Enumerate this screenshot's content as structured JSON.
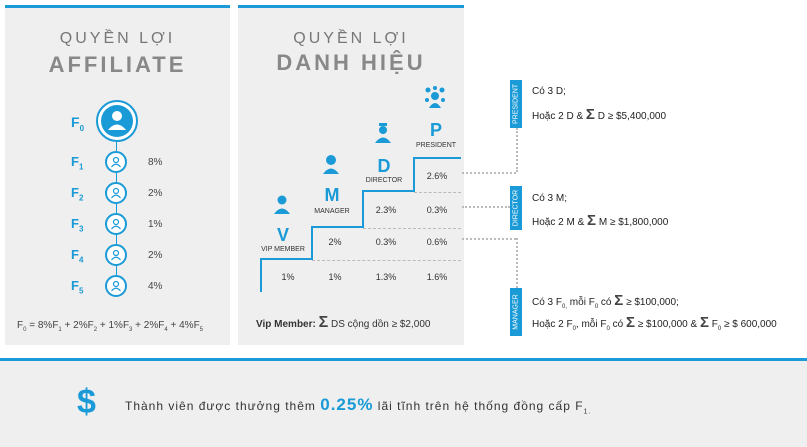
{
  "affiliate": {
    "title_line1": "QUYỀN LỢI",
    "title_line2": "AFFILIATE",
    "root_label": "F",
    "root_sub": "0",
    "levels": [
      {
        "label": "F",
        "sub": "1",
        "percent": "8%"
      },
      {
        "label": "F",
        "sub": "2",
        "percent": "2%"
      },
      {
        "label": "F",
        "sub": "3",
        "percent": "1%"
      },
      {
        "label": "F",
        "sub": "4",
        "percent": "2%"
      },
      {
        "label": "F",
        "sub": "5",
        "percent": "4%"
      }
    ],
    "formula": {
      "lhs": "F",
      "lhs_sub": "0",
      "eq": " = ",
      "terms": [
        {
          "coef": "8%F",
          "sub": "1",
          "sep": " + "
        },
        {
          "coef": "2%F",
          "sub": "2",
          "sep": " + "
        },
        {
          "coef": "1%F",
          "sub": "3",
          "sep": " + "
        },
        {
          "coef": "2%F",
          "sub": "4",
          "sep": " + "
        },
        {
          "coef": "4%F",
          "sub": "5",
          "sep": ""
        }
      ]
    }
  },
  "titles": {
    "title_line1": "QUYỀN LỢI",
    "title_line2": "DANH HIỆU",
    "levels": {
      "vip": {
        "letter": "V",
        "name": "VIP MEMBER"
      },
      "manager": {
        "letter": "M",
        "name": "MANAGER"
      },
      "director": {
        "letter": "D",
        "name": "DIRECTOR"
      },
      "president": {
        "letter": "P",
        "name": "PRESIDENT"
      }
    },
    "cells": {
      "row_p": [
        "2.6%"
      ],
      "row_d": [
        "2.3%",
        "0.3%"
      ],
      "row_m": [
        "2%",
        "0.3%",
        "0.6%"
      ],
      "row_v": [
        "1%",
        "1%",
        "1.3%",
        "1.6%"
      ]
    },
    "vip_condition": {
      "label": "Vip Member:",
      "sigma": "Σ",
      "text": " DS cộng dồn ≥  $2,000"
    }
  },
  "requirements": {
    "president": {
      "tag": "PRESIDENT",
      "line1": "Có 3 D;",
      "line2_a": "Hoặc 2 D & ",
      "line2_sigma": "Σ",
      "line2_b": " D ≥ $5,400,000"
    },
    "director": {
      "tag": "DIRECTOR",
      "line1": "Có 3 M;",
      "line2_a": "Hoặc 2 M & ",
      "line2_sigma": "Σ",
      "line2_b": " M ≥ $1,800,000"
    },
    "manager": {
      "tag": "MANAGER",
      "line1_a": "Có 3 F",
      "line1_sub1": "0,",
      "line1_b": " mỗi F",
      "line1_sub2": "0",
      "line1_c": " có ",
      "line1_sigma": "Σ",
      "line1_d": " ≥ $100,000;",
      "line2_a": "Hoặc 2 F",
      "line2_sub1": "0",
      "line2_b": ", mỗi F",
      "line2_sub2": "0",
      "line2_c": " có ",
      "line2_sigma1": "Σ",
      "line2_d": " ≥ $100,000 & ",
      "line2_sigma2": "Σ",
      "line2_e": " F",
      "line2_sub3": "0",
      "line2_f": " ≥ $ 600,000"
    }
  },
  "bonus": {
    "icon": "dollar-icon",
    "symbol": "$",
    "text_a": "Thành viên được thưởng thêm ",
    "highlight": "0.25%",
    "text_b": " lãi tĩnh trên hệ thống đồng cấp F",
    "sub": "1."
  },
  "colors": {
    "accent": "#1a9ad6",
    "panel": "#efefef"
  }
}
